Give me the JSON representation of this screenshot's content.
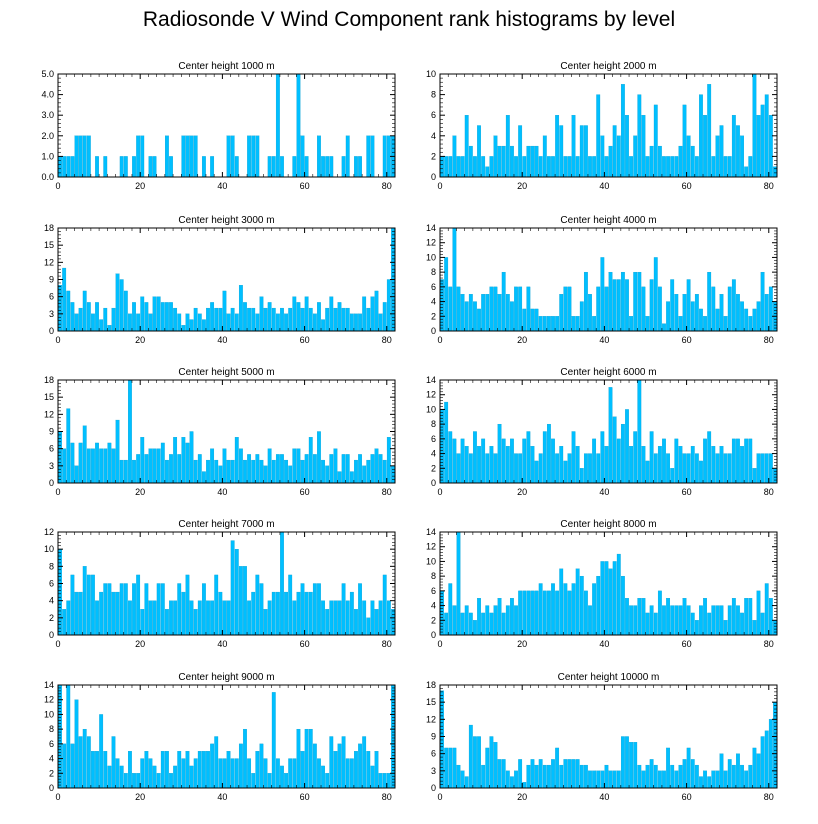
{
  "figure_title": "Radiosonde V Wind Component rank histograms by level",
  "colors": {
    "bar": "#00BFFF",
    "bar_edge": "#009ACD",
    "axis": "#000000"
  },
  "chart_data": [
    {
      "type": "bar",
      "title": "Center height 1000 m",
      "xlim": [
        0,
        82
      ],
      "ylim": [
        0,
        5
      ],
      "xticks": [
        0,
        20,
        40,
        60,
        80
      ],
      "yticks": [
        0,
        1,
        2,
        3,
        4,
        5
      ],
      "ytick_labels": [
        "0.0",
        "1.0",
        "2.0",
        "3.0",
        "4.0",
        "5.0"
      ],
      "values": [
        1,
        1,
        1,
        1,
        2,
        2,
        2,
        2,
        0,
        1,
        0,
        1,
        0,
        0,
        0,
        1,
        1,
        0,
        1,
        2,
        2,
        0,
        1,
        1,
        0,
        0,
        2,
        1,
        0,
        0,
        2,
        2,
        2,
        2,
        0,
        1,
        0,
        1,
        0,
        0,
        0,
        2,
        2,
        1,
        0,
        0,
        2,
        2,
        2,
        0,
        0,
        1,
        1,
        5,
        1,
        0,
        0,
        1,
        5,
        2,
        1,
        0,
        0,
        2,
        1,
        1,
        1,
        0,
        0,
        1,
        2,
        0,
        1,
        1,
        0,
        2,
        2,
        0,
        0,
        2,
        2,
        2
      ]
    },
    {
      "type": "bar",
      "title": "Center height 2000 m",
      "xlim": [
        0,
        82
      ],
      "ylim": [
        0,
        10
      ],
      "xticks": [
        0,
        20,
        40,
        60,
        80
      ],
      "yticks": [
        0,
        2,
        4,
        6,
        8,
        10
      ],
      "ytick_labels": [
        "0",
        "2",
        "4",
        "6",
        "8",
        "10"
      ],
      "values": [
        2,
        2,
        2,
        4,
        2,
        2,
        6,
        3,
        2,
        5,
        2,
        1,
        2,
        4,
        3,
        3,
        6,
        3,
        2,
        5,
        2,
        3,
        3,
        3,
        2,
        4,
        2,
        2,
        6,
        5,
        2,
        2,
        6,
        2,
        5,
        5,
        2,
        2,
        8,
        4,
        2,
        3,
        5,
        4,
        9,
        6,
        2,
        4,
        8,
        6,
        2,
        3,
        7,
        3,
        2,
        2,
        2,
        2,
        3,
        7,
        4,
        3,
        2,
        8,
        6,
        9,
        2,
        4,
        5,
        2,
        2,
        6,
        5,
        4,
        1,
        2,
        10,
        6,
        7,
        8,
        6,
        1
      ]
    },
    {
      "type": "bar",
      "title": "Center height 3000 m",
      "xlim": [
        0,
        82
      ],
      "ylim": [
        0,
        18
      ],
      "xticks": [
        0,
        20,
        40,
        60,
        80
      ],
      "yticks": [
        0,
        3,
        6,
        9,
        12,
        15,
        18
      ],
      "ytick_labels": [
        "0",
        "3",
        "6",
        "9",
        "12",
        "15",
        "18"
      ],
      "values": [
        8,
        11,
        7,
        5,
        3,
        4,
        7,
        5,
        3,
        5,
        2,
        4,
        1,
        4,
        10,
        9,
        7,
        3,
        5,
        3,
        6,
        5,
        3,
        6,
        6,
        5,
        5,
        5,
        4,
        3,
        1,
        3,
        2,
        4,
        3,
        2,
        4,
        5,
        4,
        4,
        7,
        3,
        4,
        3,
        8,
        5,
        4,
        4,
        3,
        6,
        4,
        5,
        4,
        3,
        4,
        3,
        4,
        6,
        5,
        4,
        6,
        4,
        3,
        5,
        2,
        4,
        6,
        4,
        5,
        4,
        4,
        3,
        3,
        3,
        6,
        4,
        6,
        7,
        3,
        5,
        9,
        18
      ]
    },
    {
      "type": "bar",
      "title": "Center height 4000 m",
      "xlim": [
        0,
        82
      ],
      "ylim": [
        0,
        14
      ],
      "xticks": [
        0,
        20,
        40,
        60,
        80
      ],
      "yticks": [
        0,
        2,
        4,
        6,
        8,
        10,
        12,
        14
      ],
      "ytick_labels": [
        "0",
        "2",
        "4",
        "6",
        "8",
        "10",
        "12",
        "14"
      ],
      "values": [
        7,
        10,
        6,
        14,
        6,
        5,
        4,
        5,
        4,
        3,
        5,
        5,
        6,
        6,
        5,
        8,
        5,
        4,
        6,
        6,
        3,
        6,
        3,
        3,
        2,
        2,
        2,
        2,
        2,
        5,
        6,
        6,
        2,
        2,
        4,
        8,
        5,
        2,
        6,
        10,
        6,
        8,
        7,
        7,
        8,
        7,
        2,
        8,
        8,
        6,
        2,
        7,
        10,
        6,
        1,
        4,
        7,
        5,
        2,
        5,
        7,
        4,
        5,
        3,
        2,
        8,
        6,
        3,
        5,
        2,
        6,
        7,
        5,
        4,
        3,
        2,
        3,
        4,
        8,
        5,
        6,
        4
      ]
    },
    {
      "type": "bar",
      "title": "Center height 5000 m",
      "xlim": [
        0,
        82
      ],
      "ylim": [
        0,
        18
      ],
      "xticks": [
        0,
        20,
        40,
        60,
        80
      ],
      "yticks": [
        0,
        3,
        6,
        9,
        12,
        15,
        18
      ],
      "ytick_labels": [
        "0",
        "3",
        "6",
        "9",
        "12",
        "15",
        "18"
      ],
      "values": [
        9,
        6,
        13,
        7,
        3,
        7,
        10,
        6,
        6,
        7,
        6,
        6,
        7,
        6,
        11,
        4,
        4,
        18,
        4,
        5,
        8,
        5,
        6,
        6,
        6,
        7,
        4,
        5,
        8,
        5,
        8,
        7,
        9,
        4,
        5,
        2,
        4,
        6,
        4,
        3,
        6,
        4,
        4,
        8,
        6,
        4,
        5,
        4,
        5,
        4,
        3,
        6,
        4,
        5,
        5,
        4,
        3,
        6,
        6,
        4,
        5,
        8,
        5,
        9,
        4,
        3,
        5,
        6,
        2,
        5,
        5,
        2,
        4,
        5,
        3,
        4,
        5,
        6,
        5,
        4,
        8,
        3
      ]
    },
    {
      "type": "bar",
      "title": "Center height 6000 m",
      "xlim": [
        0,
        82
      ],
      "ylim": [
        0,
        14
      ],
      "xticks": [
        0,
        20,
        40,
        60,
        80
      ],
      "yticks": [
        0,
        2,
        4,
        6,
        8,
        10,
        12,
        14
      ],
      "ytick_labels": [
        "0",
        "2",
        "4",
        "6",
        "8",
        "10",
        "12",
        "14"
      ],
      "values": [
        10,
        11,
        7,
        6,
        4,
        6,
        5,
        4,
        7,
        5,
        6,
        4,
        5,
        4,
        8,
        6,
        5,
        6,
        4,
        4,
        6,
        7,
        5,
        3,
        4,
        7,
        8,
        6,
        4,
        5,
        3,
        4,
        7,
        5,
        2,
        4,
        4,
        6,
        4,
        7,
        5,
        13,
        9,
        6,
        8,
        10,
        5,
        7,
        14,
        5,
        3,
        7,
        4,
        5,
        6,
        4,
        2,
        6,
        5,
        4,
        4,
        5,
        4,
        3,
        6,
        7,
        5,
        4,
        5,
        4,
        4,
        6,
        6,
        5,
        6,
        6,
        2,
        4,
        4,
        4,
        4,
        2
      ]
    },
    {
      "type": "bar",
      "title": "Center height 7000 m",
      "xlim": [
        0,
        82
      ],
      "ylim": [
        0,
        12
      ],
      "xticks": [
        0,
        20,
        40,
        60,
        80
      ],
      "yticks": [
        0,
        2,
        4,
        6,
        8,
        10,
        12
      ],
      "ytick_labels": [
        "0",
        "2",
        "4",
        "6",
        "8",
        "10",
        "12"
      ],
      "values": [
        10,
        3,
        4,
        7,
        5,
        5,
        8,
        7,
        7,
        4,
        5,
        6,
        6,
        5,
        5,
        6,
        6,
        4,
        6,
        7,
        3,
        6,
        4,
        4,
        6,
        6,
        3,
        4,
        4,
        6,
        5,
        7,
        4,
        3,
        4,
        6,
        4,
        4,
        7,
        5,
        4,
        4,
        11,
        10,
        8,
        8,
        4,
        5,
        7,
        6,
        3,
        4,
        5,
        5,
        12,
        5,
        7,
        4,
        5,
        6,
        5,
        5,
        6,
        6,
        4,
        3,
        4,
        4,
        4,
        6,
        4,
        5,
        3,
        6,
        4,
        2,
        4,
        3,
        4,
        7,
        4,
        3
      ]
    },
    {
      "type": "bar",
      "title": "Center height 8000 m",
      "xlim": [
        0,
        82
      ],
      "ylim": [
        0,
        14
      ],
      "xticks": [
        0,
        20,
        40,
        60,
        80
      ],
      "yticks": [
        0,
        2,
        4,
        6,
        8,
        10,
        12,
        14
      ],
      "ytick_labels": [
        "0",
        "2",
        "4",
        "6",
        "8",
        "10",
        "12",
        "14"
      ],
      "values": [
        6,
        3,
        7,
        4,
        14,
        3,
        4,
        3,
        2,
        5,
        3,
        4,
        3,
        4,
        5,
        3,
        4,
        5,
        4,
        6,
        6,
        6,
        6,
        6,
        7,
        6,
        6,
        7,
        6,
        9,
        7,
        6,
        7,
        9,
        8,
        6,
        4,
        7,
        8,
        10,
        10,
        9,
        10,
        11,
        8,
        5,
        4,
        4,
        5,
        5,
        3,
        4,
        3,
        6,
        4,
        5,
        4,
        4,
        4,
        5,
        4,
        3,
        2,
        4,
        5,
        3,
        4,
        4,
        4,
        2,
        4,
        5,
        4,
        3,
        5,
        5,
        2,
        6,
        3,
        7,
        5,
        2
      ]
    },
    {
      "type": "bar",
      "title": "Center height 9000 m",
      "xlim": [
        0,
        82
      ],
      "ylim": [
        0,
        14
      ],
      "xticks": [
        0,
        20,
        40,
        60,
        80
      ],
      "yticks": [
        0,
        2,
        4,
        6,
        8,
        10,
        12,
        14
      ],
      "ytick_labels": [
        "0",
        "2",
        "4",
        "6",
        "8",
        "10",
        "12",
        "14"
      ],
      "values": [
        14,
        6,
        14,
        6,
        12,
        7,
        8,
        7,
        5,
        5,
        10,
        5,
        3,
        7,
        4,
        3,
        2,
        5,
        2,
        2,
        4,
        5,
        4,
        3,
        2,
        5,
        5,
        2,
        3,
        5,
        4,
        5,
        3,
        4,
        5,
        5,
        5,
        6,
        7,
        4,
        4,
        5,
        4,
        4,
        6,
        8,
        4,
        2,
        5,
        6,
        4,
        2,
        13,
        4,
        3,
        2,
        4,
        4,
        8,
        5,
        8,
        8,
        6,
        4,
        3,
        2,
        7,
        5,
        6,
        7,
        4,
        4,
        5,
        6,
        7,
        5,
        3,
        5,
        2,
        2,
        2,
        14
      ]
    },
    {
      "type": "bar",
      "title": "Center height 10000 m",
      "xlim": [
        0,
        82
      ],
      "ylim": [
        0,
        18
      ],
      "xticks": [
        0,
        20,
        40,
        60,
        80
      ],
      "yticks": [
        0,
        3,
        6,
        9,
        12,
        15,
        18
      ],
      "ytick_labels": [
        "0",
        "3",
        "6",
        "9",
        "12",
        "15",
        "18"
      ],
      "values": [
        17,
        7,
        7,
        7,
        4,
        3,
        2,
        11,
        9,
        9,
        4,
        7,
        9,
        8,
        5,
        5,
        3,
        2,
        3,
        5,
        1,
        4,
        5,
        4,
        5,
        4,
        4,
        5,
        7,
        4,
        5,
        5,
        5,
        5,
        4,
        4,
        3,
        3,
        3,
        3,
        4,
        3,
        3,
        3,
        9,
        9,
        8,
        8,
        4,
        3,
        4,
        5,
        4,
        3,
        3,
        7,
        4,
        3,
        4,
        5,
        7,
        5,
        4,
        2,
        3,
        2,
        3,
        3,
        6,
        3,
        5,
        4,
        6,
        4,
        3,
        4,
        7,
        6,
        9,
        10,
        12,
        15
      ]
    }
  ]
}
